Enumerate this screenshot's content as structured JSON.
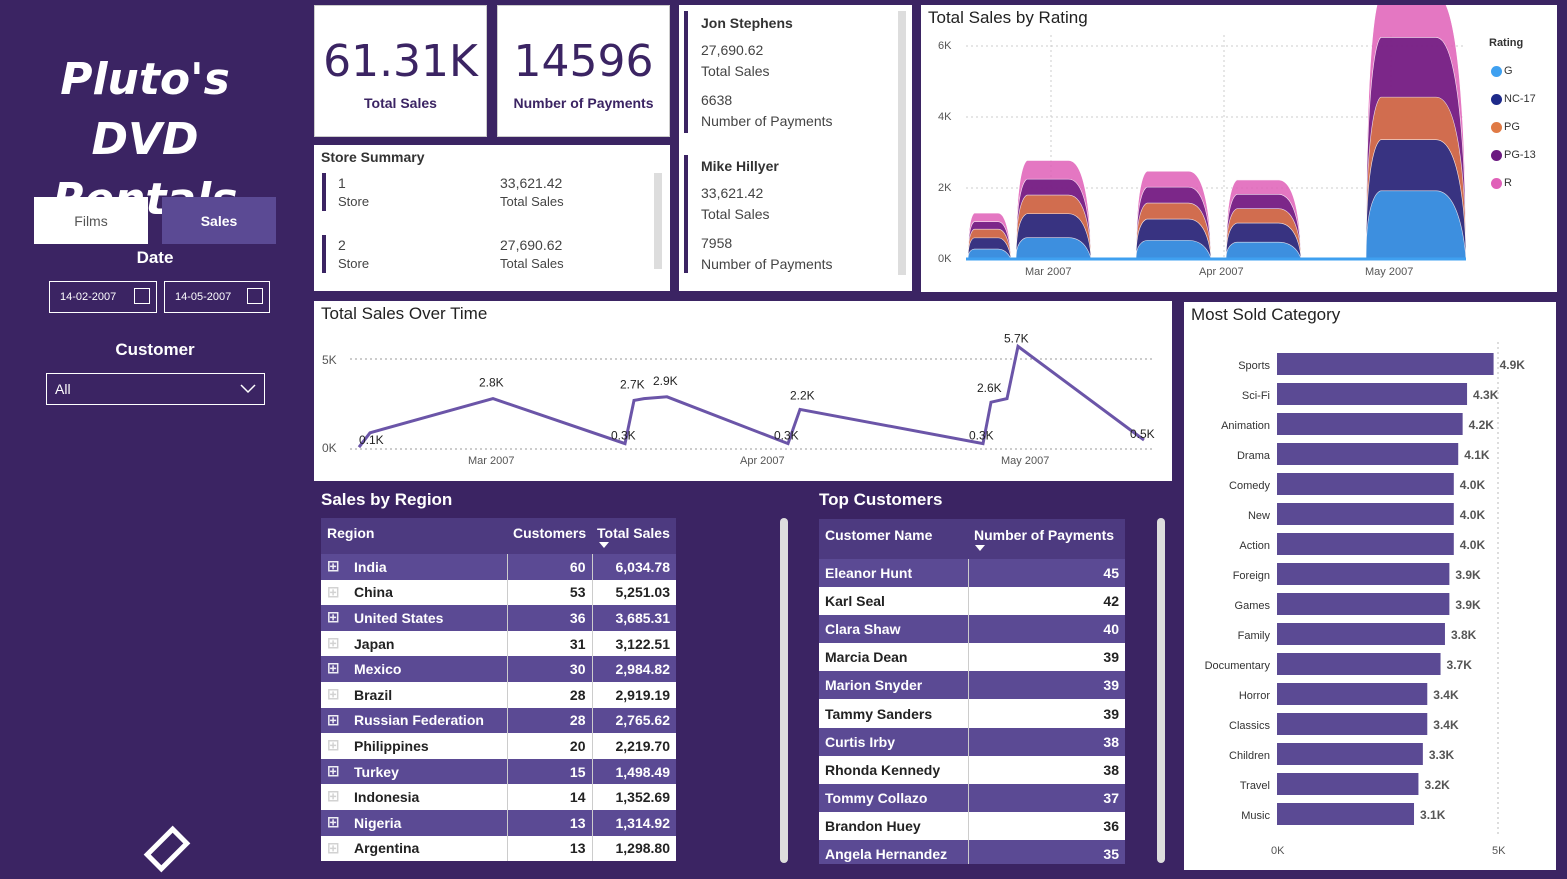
{
  "app": {
    "title": "Pluto's DVD Rentals"
  },
  "nav": {
    "films_label": "Films",
    "sales_label": "Sales"
  },
  "filters": {
    "date_label": "Date",
    "date_from": "14-02-2007",
    "date_to": "14-05-2007",
    "customer_label": "Customer",
    "customer_value": "All"
  },
  "kpis": {
    "total_sales_value": "61.31K",
    "total_sales_label": "Total Sales",
    "payments_value": "14596",
    "payments_label": "Number of Payments"
  },
  "store_summary": {
    "title": "Store Summary",
    "stores": [
      {
        "store": "1",
        "store_label": "Store",
        "sales": "33,621.42",
        "sales_label": "Total Sales"
      },
      {
        "store": "2",
        "store_label": "Store",
        "sales": "27,690.62",
        "sales_label": "Total Sales"
      }
    ]
  },
  "staff": [
    {
      "name": "Jon Stephens",
      "sales": "27,690.62",
      "sales_label": "Total Sales",
      "payments": "6638",
      "payments_label": "Number of Payments"
    },
    {
      "name": "Mike Hillyer",
      "sales": "33,621.42",
      "sales_label": "Total Sales",
      "payments": "7958",
      "payments_label": "Number of Payments"
    }
  ],
  "sales_by_rating": {
    "title": "Total Sales by Rating",
    "legend_title": "Rating",
    "y_ticks": [
      "6K",
      "4K",
      "2K",
      "0K"
    ],
    "x_ticks": [
      "Mar 2007",
      "Apr 2007",
      "May 2007"
    ],
    "legend": [
      {
        "name": "G",
        "color": "#3fa0f0"
      },
      {
        "name": "NC-17",
        "color": "#1e2a8a"
      },
      {
        "name": "PG",
        "color": "#e07a45"
      },
      {
        "name": "PG-13",
        "color": "#6b1a80"
      },
      {
        "name": "R",
        "color": "#e060b8"
      }
    ]
  },
  "sales_over_time": {
    "title": "Total Sales Over Time",
    "y_ticks": [
      "5K",
      "0K"
    ],
    "x_ticks": [
      "Mar 2007",
      "Apr 2007",
      "May 2007"
    ],
    "data_labels": [
      "0.1K",
      "2.8K",
      "0.3K",
      "2.7K",
      "2.9K",
      "0.3K",
      "2.2K",
      "0.3K",
      "2.6K",
      "5.7K",
      "0.5K"
    ]
  },
  "most_sold_category": {
    "title": "Most Sold Category",
    "x_ticks": [
      "0K",
      "5K"
    ]
  },
  "chart_data": [
    {
      "type": "area",
      "title": "Total Sales by Rating",
      "x": [
        "Mar 2007",
        "Apr 2007",
        "May 2007"
      ],
      "ylim": [
        0,
        6000
      ],
      "series": [
        {
          "name": "G",
          "values": [
            800,
            700,
            1600
          ]
        },
        {
          "name": "NC-17",
          "values": [
            900,
            800,
            1200
          ]
        },
        {
          "name": "PG",
          "values": [
            700,
            600,
            1000
          ]
        },
        {
          "name": "PG-13",
          "values": [
            600,
            600,
            1400
          ]
        },
        {
          "name": "R",
          "values": [
            700,
            600,
            1000
          ]
        }
      ]
    },
    {
      "type": "line",
      "title": "Total Sales Over Time",
      "x": [
        "Feb 14",
        "Feb 15",
        "Mar 1",
        "Mar 18",
        "Mar 19",
        "Mar 20",
        "Mar 21",
        "Apr 5",
        "Apr 6",
        "Apr 27",
        "Apr 28",
        "Apr 29",
        "Apr 30",
        "May 14"
      ],
      "values": [
        100,
        900,
        2800,
        300,
        2700,
        2800,
        2900,
        300,
        2200,
        300,
        2600,
        2800,
        5700,
        500
      ],
      "ylim": [
        0,
        6000
      ]
    },
    {
      "type": "bar",
      "title": "Most Sold Category",
      "categories": [
        "Sports",
        "Sci-Fi",
        "Animation",
        "Drama",
        "Comedy",
        "New",
        "Action",
        "Foreign",
        "Games",
        "Family",
        "Documentary",
        "Horror",
        "Classics",
        "Children",
        "Travel",
        "Music"
      ],
      "values": [
        4.9,
        4.3,
        4.2,
        4.1,
        4.0,
        4.0,
        4.0,
        3.9,
        3.9,
        3.8,
        3.7,
        3.4,
        3.4,
        3.3,
        3.2,
        3.1
      ],
      "labels": [
        "4.9K",
        "4.3K",
        "4.2K",
        "4.1K",
        "4.0K",
        "4.0K",
        "4.0K",
        "3.9K",
        "3.9K",
        "3.8K",
        "3.7K",
        "3.4K",
        "3.4K",
        "3.3K",
        "3.2K",
        "3.1K"
      ],
      "xlim": [
        0,
        5
      ]
    }
  ],
  "sales_by_region": {
    "title": "Sales by Region",
    "columns": [
      "Region",
      "Customers",
      "Total Sales"
    ],
    "rows": [
      {
        "region": "India",
        "customers": "60",
        "sales": "6,034.78"
      },
      {
        "region": "China",
        "customers": "53",
        "sales": "5,251.03"
      },
      {
        "region": "United States",
        "customers": "36",
        "sales": "3,685.31"
      },
      {
        "region": "Japan",
        "customers": "31",
        "sales": "3,122.51"
      },
      {
        "region": "Mexico",
        "customers": "30",
        "sales": "2,984.82"
      },
      {
        "region": "Brazil",
        "customers": "28",
        "sales": "2,919.19"
      },
      {
        "region": "Russian Federation",
        "customers": "28",
        "sales": "2,765.62"
      },
      {
        "region": "Philippines",
        "customers": "20",
        "sales": "2,219.70"
      },
      {
        "region": "Turkey",
        "customers": "15",
        "sales": "1,498.49"
      },
      {
        "region": "Indonesia",
        "customers": "14",
        "sales": "1,352.69"
      },
      {
        "region": "Nigeria",
        "customers": "13",
        "sales": "1,314.92"
      },
      {
        "region": "Argentina",
        "customers": "13",
        "sales": "1,298.80"
      }
    ]
  },
  "top_customers": {
    "title": "Top Customers",
    "columns": [
      "Customer Name",
      "Number of Payments"
    ],
    "rows": [
      {
        "name": "Eleanor Hunt",
        "payments": "45"
      },
      {
        "name": "Karl Seal",
        "payments": "42"
      },
      {
        "name": "Clara Shaw",
        "payments": "40"
      },
      {
        "name": "Marcia Dean",
        "payments": "39"
      },
      {
        "name": "Marion Snyder",
        "payments": "39"
      },
      {
        "name": "Tammy Sanders",
        "payments": "39"
      },
      {
        "name": "Curtis Irby",
        "payments": "38"
      },
      {
        "name": "Rhonda Kennedy",
        "payments": "38"
      },
      {
        "name": "Tommy Collazo",
        "payments": "37"
      },
      {
        "name": "Brandon Huey",
        "payments": "36"
      },
      {
        "name": "Angela Hernandez",
        "payments": "35"
      }
    ]
  }
}
